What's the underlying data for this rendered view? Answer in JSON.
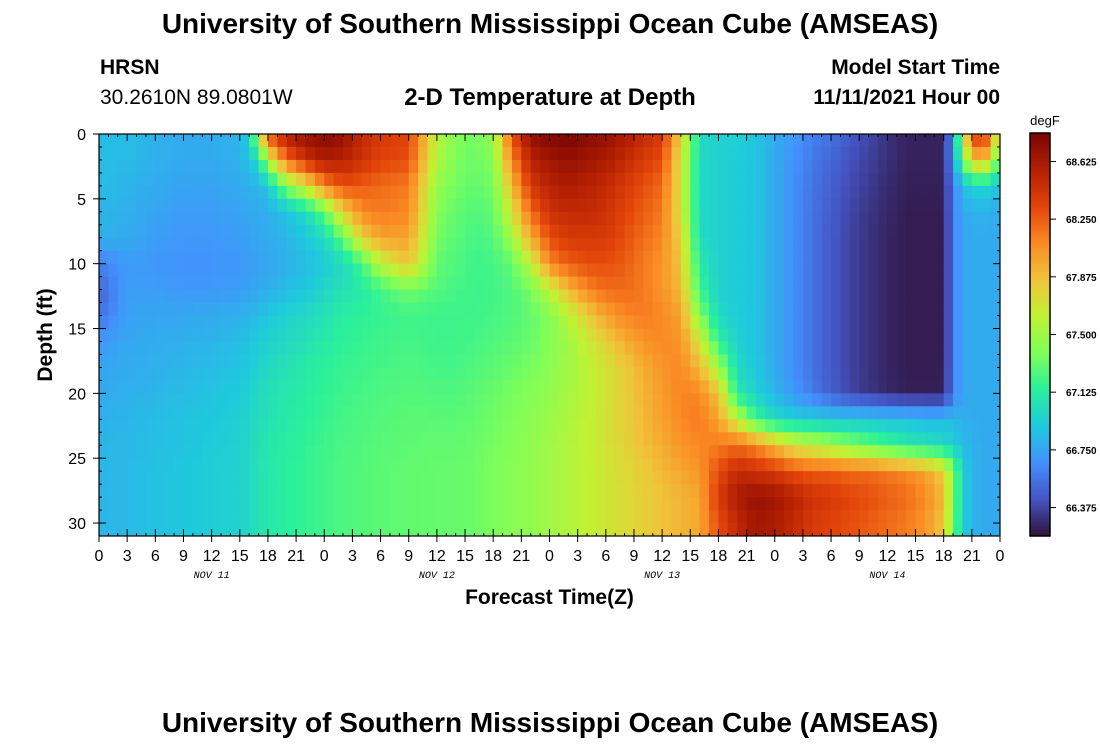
{
  "header": {
    "title": "University of Southern Mississippi Ocean Cube (AMSEAS)",
    "station": "HRSN",
    "coordinates": "30.2610N  89.0801W",
    "subtitle": "2-D Temperature at Depth",
    "model_start_label": "Model Start Time",
    "model_start_value": "11/11/2021 Hour 00"
  },
  "footer": {
    "title": "University of Southern Mississippi Ocean Cube (AMSEAS)"
  },
  "chart_data": {
    "type": "heatmap",
    "title": "2-D Temperature at Depth",
    "xlabel": "Forecast Time(Z)",
    "ylabel": "Depth (ft)",
    "x_range_hours": [
      0,
      96
    ],
    "y_range_ft": [
      0,
      31
    ],
    "x_tick_hours": [
      0,
      3,
      6,
      9,
      12,
      15,
      18,
      21,
      24,
      27,
      30,
      33,
      36,
      39,
      42,
      45,
      48,
      51,
      54,
      57,
      60,
      63,
      66,
      69,
      72,
      75,
      78,
      81,
      84,
      87,
      90,
      93,
      96
    ],
    "x_tick_labels": [
      "0",
      "3",
      "6",
      "9",
      "12",
      "15",
      "18",
      "21",
      "0",
      "3",
      "6",
      "9",
      "12",
      "15",
      "18",
      "21",
      "0",
      "3",
      "6",
      "9",
      "12",
      "15",
      "18",
      "21",
      "0",
      "3",
      "6",
      "9",
      "12",
      "15",
      "18",
      "21",
      "0"
    ],
    "y_ticks": [
      0,
      5,
      10,
      15,
      20,
      25,
      30
    ],
    "y_tick_labels": [
      "0",
      "5",
      "10",
      "15",
      "20",
      "25",
      "30"
    ],
    "day_labels": [
      {
        "hour": 12,
        "label": "NOV 11"
      },
      {
        "hour": 36,
        "label": "NOV 12"
      },
      {
        "hour": 60,
        "label": "NOV 13"
      },
      {
        "hour": 84,
        "label": "NOV 14"
      }
    ],
    "colorbar": {
      "units": "degF",
      "min": 66.19,
      "max": 68.81,
      "ticks": [
        66.375,
        66.75,
        67.125,
        67.5,
        67.875,
        68.25,
        68.625
      ],
      "tick_labels": [
        "66.375",
        "66.750",
        "67.125",
        "67.500",
        "67.875",
        "68.250",
        "68.625"
      ],
      "colors": [
        "#30123b",
        "#4454c4",
        "#4490fe",
        "#1fc9dd",
        "#2af09b",
        "#7ffe59",
        "#c0f233",
        "#f0c43a",
        "#fa8a24",
        "#e3440a",
        "#b31f03",
        "#7a0403"
      ]
    },
    "temperature_field_degF": {
      "time_hours": [
        0,
        3,
        6,
        9,
        12,
        15,
        16,
        17,
        18,
        20,
        22,
        24,
        26,
        28,
        30,
        33,
        36,
        38,
        40,
        42,
        44,
        46,
        48,
        50,
        52,
        54,
        56,
        58,
        60,
        62,
        64,
        66,
        68,
        70,
        72,
        74,
        76,
        78,
        80,
        82,
        84,
        86,
        88,
        90,
        91,
        92,
        93,
        94,
        95,
        96
      ],
      "depth_ft": [
        0,
        2,
        4,
        6,
        8,
        10,
        12,
        14,
        16,
        18,
        20,
        22,
        24,
        26,
        28,
        30,
        31
      ],
      "rows_by_depth": [
        [
          66.85,
          66.85,
          66.8,
          66.78,
          66.78,
          66.82,
          66.95,
          67.6,
          68.3,
          68.6,
          68.7,
          68.75,
          68.7,
          68.5,
          68.4,
          68.35,
          67.6,
          67.4,
          67.35,
          67.45,
          68.3,
          68.7,
          68.78,
          68.8,
          68.75,
          68.7,
          68.6,
          68.5,
          68.4,
          67.8,
          67.0,
          66.95,
          66.95,
          66.9,
          66.78,
          66.7,
          66.6,
          66.55,
          66.45,
          66.38,
          66.3,
          66.25,
          66.25,
          66.25,
          66.7,
          67.6,
          68.3,
          68.5,
          68.2,
          67.4
        ],
        [
          66.85,
          66.85,
          66.8,
          66.78,
          66.78,
          66.8,
          66.9,
          67.0,
          67.6,
          68.2,
          68.45,
          68.6,
          68.55,
          68.45,
          68.35,
          68.3,
          67.55,
          67.38,
          67.32,
          67.4,
          68.1,
          68.55,
          68.65,
          68.7,
          68.65,
          68.6,
          68.5,
          68.4,
          68.3,
          67.7,
          67.0,
          66.95,
          66.92,
          66.88,
          66.78,
          66.68,
          66.58,
          66.5,
          66.42,
          66.36,
          66.3,
          66.25,
          66.25,
          66.25,
          66.7,
          67.3,
          67.8,
          68.0,
          67.7,
          67.2
        ],
        [
          66.85,
          66.82,
          66.78,
          66.75,
          66.75,
          66.78,
          66.8,
          66.82,
          66.9,
          67.4,
          67.7,
          68.1,
          68.3,
          68.25,
          68.2,
          68.15,
          67.45,
          67.35,
          67.3,
          67.35,
          67.9,
          68.4,
          68.55,
          68.6,
          68.55,
          68.5,
          68.4,
          68.3,
          68.2,
          67.7,
          67.0,
          66.95,
          66.92,
          66.88,
          66.78,
          66.66,
          66.56,
          66.48,
          66.4,
          66.34,
          66.28,
          66.24,
          66.24,
          66.24,
          66.6,
          66.85,
          66.95,
          66.98,
          66.95,
          66.85
        ],
        [
          66.82,
          66.8,
          66.75,
          66.72,
          66.72,
          66.75,
          66.77,
          66.78,
          66.8,
          66.88,
          67.0,
          67.3,
          67.8,
          68.1,
          68.15,
          68.1,
          67.4,
          67.3,
          67.25,
          67.3,
          67.7,
          68.2,
          68.45,
          68.5,
          68.5,
          68.45,
          68.35,
          68.25,
          68.15,
          67.7,
          67.0,
          66.95,
          66.92,
          66.88,
          66.78,
          66.66,
          66.55,
          66.46,
          66.38,
          66.32,
          66.27,
          66.23,
          66.23,
          66.23,
          66.6,
          66.78,
          66.8,
          66.8,
          66.8,
          66.78
        ],
        [
          66.8,
          66.78,
          66.72,
          66.7,
          66.7,
          66.72,
          66.74,
          66.76,
          66.78,
          66.82,
          66.9,
          67.0,
          67.3,
          67.8,
          68.0,
          68.0,
          67.35,
          67.28,
          67.22,
          67.25,
          67.5,
          67.95,
          68.3,
          68.4,
          68.4,
          68.4,
          68.3,
          68.2,
          68.1,
          67.8,
          67.0,
          66.95,
          66.92,
          66.88,
          66.78,
          66.66,
          66.55,
          66.45,
          66.37,
          66.31,
          66.26,
          66.23,
          66.23,
          66.23,
          66.6,
          66.76,
          66.78,
          66.78,
          66.78,
          66.76
        ],
        [
          66.6,
          66.72,
          66.7,
          66.68,
          66.68,
          66.7,
          66.72,
          66.74,
          66.76,
          66.8,
          66.85,
          66.92,
          67.0,
          67.2,
          67.6,
          67.85,
          67.3,
          67.25,
          67.2,
          67.22,
          67.3,
          67.6,
          68.1,
          68.25,
          68.3,
          68.3,
          68.25,
          68.15,
          68.05,
          67.85,
          67.1,
          66.95,
          66.92,
          66.88,
          66.78,
          66.66,
          66.55,
          66.45,
          66.37,
          66.31,
          66.26,
          66.23,
          66.23,
          66.23,
          66.6,
          66.76,
          66.78,
          66.78,
          66.78,
          66.76
        ],
        [
          66.5,
          66.72,
          66.72,
          66.7,
          66.7,
          66.72,
          66.74,
          66.76,
          66.8,
          66.85,
          66.9,
          66.98,
          67.05,
          67.1,
          67.2,
          67.35,
          67.25,
          67.22,
          67.2,
          67.2,
          67.25,
          67.35,
          67.6,
          67.9,
          68.1,
          68.2,
          68.2,
          68.15,
          68.05,
          67.9,
          67.2,
          66.95,
          66.92,
          66.88,
          66.78,
          66.66,
          66.55,
          66.45,
          66.37,
          66.31,
          66.26,
          66.23,
          66.23,
          66.23,
          66.6,
          66.76,
          66.78,
          66.78,
          66.78,
          66.76
        ],
        [
          66.55,
          66.74,
          66.76,
          66.76,
          66.78,
          66.8,
          66.82,
          66.85,
          66.9,
          66.95,
          67.0,
          67.05,
          67.12,
          67.15,
          67.18,
          67.2,
          67.2,
          67.2,
          67.2,
          67.22,
          67.25,
          67.3,
          67.4,
          67.6,
          67.8,
          68.0,
          68.1,
          68.15,
          68.1,
          68.0,
          67.4,
          67.0,
          66.92,
          66.88,
          66.78,
          66.66,
          66.55,
          66.45,
          66.37,
          66.31,
          66.26,
          66.23,
          66.23,
          66.23,
          66.6,
          66.76,
          66.78,
          66.78,
          66.78,
          66.76
        ],
        [
          66.7,
          66.76,
          66.78,
          66.8,
          66.82,
          66.85,
          66.88,
          66.92,
          66.96,
          67.0,
          67.05,
          67.1,
          67.15,
          67.18,
          67.2,
          67.22,
          67.2,
          67.2,
          67.22,
          67.25,
          67.28,
          67.32,
          67.4,
          67.5,
          67.65,
          67.8,
          67.95,
          68.05,
          68.1,
          68.05,
          67.7,
          67.15,
          66.95,
          66.88,
          66.78,
          66.66,
          66.55,
          66.45,
          66.37,
          66.31,
          66.26,
          66.23,
          66.23,
          66.23,
          66.6,
          66.76,
          66.78,
          66.78,
          66.78,
          66.76
        ],
        [
          66.75,
          66.78,
          66.8,
          66.82,
          66.85,
          66.88,
          66.92,
          66.96,
          67.0,
          67.05,
          67.1,
          67.14,
          67.18,
          67.2,
          67.22,
          67.24,
          67.22,
          67.22,
          67.25,
          67.28,
          67.32,
          67.36,
          67.42,
          67.5,
          67.6,
          67.7,
          67.82,
          67.95,
          68.05,
          68.1,
          67.9,
          67.5,
          67.0,
          66.9,
          66.78,
          66.66,
          66.55,
          66.45,
          66.37,
          66.31,
          66.26,
          66.23,
          66.23,
          66.23,
          66.6,
          66.76,
          66.78,
          66.78,
          66.78,
          66.76
        ],
        [
          66.78,
          66.8,
          66.82,
          66.85,
          66.88,
          66.92,
          66.95,
          67.0,
          67.04,
          67.08,
          67.12,
          67.16,
          67.2,
          67.22,
          67.24,
          67.26,
          67.25,
          67.25,
          67.28,
          67.32,
          67.36,
          67.4,
          67.45,
          67.52,
          67.6,
          67.7,
          67.8,
          67.92,
          68.02,
          68.12,
          68.1,
          67.85,
          67.1,
          66.95,
          66.82,
          66.7,
          66.58,
          66.47,
          66.38,
          66.32,
          66.27,
          66.24,
          66.24,
          66.24,
          66.6,
          66.76,
          66.78,
          66.78,
          66.78,
          66.76
        ],
        [
          66.8,
          66.82,
          66.85,
          66.88,
          66.9,
          66.94,
          66.98,
          67.02,
          67.06,
          67.1,
          67.14,
          67.18,
          67.22,
          67.24,
          67.26,
          67.28,
          67.28,
          67.28,
          67.3,
          67.34,
          67.38,
          67.42,
          67.48,
          67.54,
          67.62,
          67.7,
          67.8,
          67.9,
          68.0,
          68.1,
          68.15,
          68.0,
          67.6,
          67.2,
          67.0,
          66.95,
          66.92,
          66.9,
          66.9,
          66.9,
          66.88,
          66.88,
          66.85,
          66.85,
          66.85,
          66.8,
          66.78,
          66.78,
          66.78,
          66.76
        ],
        [
          66.82,
          66.84,
          66.86,
          66.88,
          66.92,
          66.95,
          67.0,
          67.04,
          67.08,
          67.12,
          67.16,
          67.2,
          67.23,
          67.25,
          67.27,
          67.29,
          67.3,
          67.3,
          67.32,
          67.36,
          67.4,
          67.44,
          67.5,
          67.56,
          67.62,
          67.7,
          67.78,
          67.88,
          67.95,
          68.05,
          68.1,
          68.15,
          68.2,
          68.1,
          67.9,
          67.7,
          67.6,
          67.5,
          67.4,
          67.3,
          67.2,
          67.1,
          67.05,
          67.0,
          66.95,
          66.85,
          66.8,
          66.78,
          66.78,
          66.76
        ],
        [
          66.82,
          66.84,
          66.87,
          66.9,
          66.93,
          66.96,
          67.0,
          67.05,
          67.09,
          67.13,
          67.17,
          67.21,
          67.24,
          67.26,
          67.28,
          67.3,
          67.31,
          67.31,
          67.33,
          67.37,
          67.41,
          67.45,
          67.5,
          67.56,
          67.62,
          67.68,
          67.75,
          67.82,
          67.9,
          67.98,
          68.05,
          68.3,
          68.5,
          68.45,
          68.4,
          68.3,
          68.25,
          68.25,
          68.2,
          68.2,
          68.15,
          68.1,
          68.0,
          67.8,
          67.4,
          66.95,
          66.82,
          66.78,
          66.78,
          66.76
        ],
        [
          66.82,
          66.84,
          66.87,
          66.9,
          66.93,
          66.96,
          67.0,
          67.05,
          67.09,
          67.13,
          67.17,
          67.21,
          67.24,
          67.26,
          67.28,
          67.3,
          67.31,
          67.31,
          67.33,
          67.37,
          67.41,
          67.45,
          67.5,
          67.56,
          67.62,
          67.68,
          67.74,
          67.8,
          67.86,
          67.92,
          67.98,
          68.4,
          68.6,
          68.7,
          68.65,
          68.55,
          68.45,
          68.4,
          68.35,
          68.3,
          68.25,
          68.2,
          68.1,
          67.9,
          67.4,
          66.95,
          66.82,
          66.78,
          66.78,
          66.76
        ],
        [
          66.82,
          66.84,
          66.87,
          66.9,
          66.93,
          66.96,
          67.0,
          67.05,
          67.09,
          67.13,
          67.17,
          67.21,
          67.24,
          67.26,
          67.28,
          67.3,
          67.31,
          67.31,
          67.33,
          67.37,
          67.41,
          67.45,
          67.5,
          67.56,
          67.62,
          67.68,
          67.74,
          67.8,
          67.86,
          67.92,
          67.98,
          68.3,
          68.5,
          68.65,
          68.6,
          68.5,
          68.4,
          68.35,
          68.3,
          68.25,
          68.2,
          68.15,
          68.05,
          67.85,
          67.35,
          66.95,
          66.82,
          66.78,
          66.78,
          66.76
        ],
        [
          66.82,
          66.84,
          66.87,
          66.9,
          66.93,
          66.96,
          67.0,
          67.05,
          67.09,
          67.13,
          67.17,
          67.21,
          67.24,
          67.26,
          67.28,
          67.3,
          67.31,
          67.31,
          67.33,
          67.37,
          67.41,
          67.45,
          67.5,
          67.56,
          67.62,
          67.68,
          67.74,
          67.8,
          67.86,
          67.92,
          67.98,
          68.3,
          68.5,
          68.65,
          68.6,
          68.5,
          68.4,
          68.35,
          68.3,
          68.25,
          68.2,
          68.15,
          68.05,
          67.85,
          67.35,
          66.95,
          66.82,
          66.78,
          66.78,
          66.76
        ]
      ]
    }
  }
}
